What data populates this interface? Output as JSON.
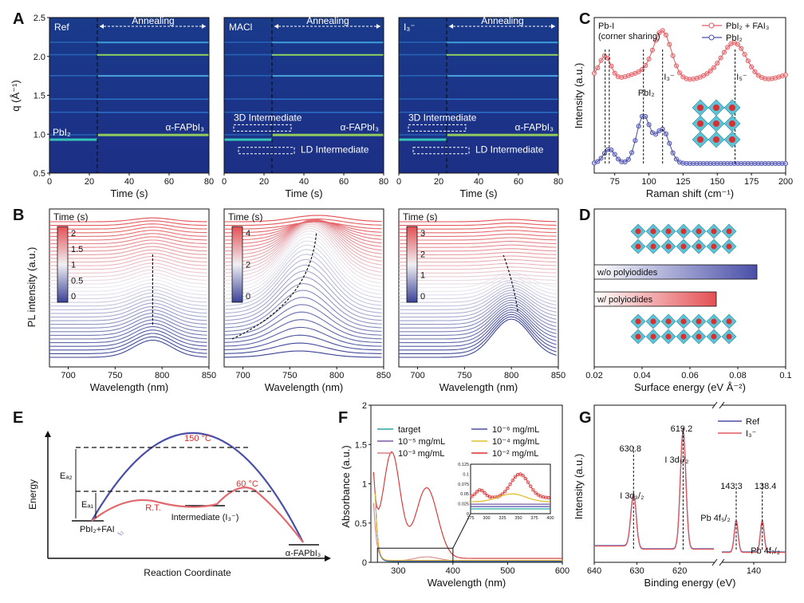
{
  "chart_data": [
    {
      "panel": "A",
      "type": "heatmap",
      "xlabel": "Time (s)",
      "ylabel": "q (Å⁻¹)",
      "xlim": [
        0,
        80
      ],
      "ylim": [
        0.5,
        2.5
      ],
      "xticks": [
        "0",
        "20",
        "40",
        "60",
        "80"
      ],
      "yticks": [
        "0.5",
        "1.0",
        "1.5",
        "2.0",
        "2.5"
      ],
      "annealing_start_s": 24,
      "annealing_label": "Annealing",
      "subplots": [
        {
          "title": "Ref",
          "labels": {
            "left_phase": "PbI₂",
            "right_phase": "α-FAPbI₃"
          }
        },
        {
          "title": "MACl",
          "labels": {
            "intermediate_3d": "3D Intermediate",
            "intermediate_ld": "LD Intermediate",
            "right_phase": "α-FAPbI₃"
          }
        },
        {
          "title": "I₃⁻",
          "labels": {
            "intermediate_3d": "3D Intermediate",
            "intermediate_ld": "LD Intermediate",
            "right_phase": "α-FAPbI₃"
          }
        }
      ]
    },
    {
      "panel": "B",
      "type": "line",
      "xlabel": "Wavelength (nm)",
      "ylabel": "PL intensity (a.u.)",
      "xlim": [
        680,
        850
      ],
      "xticks": [
        "700",
        "750",
        "800",
        "850"
      ],
      "colorbar_label": "Time (s)",
      "subplots": [
        {
          "colorbar_ticks": [
            "2",
            "1.5",
            "1",
            "0.5",
            "0"
          ],
          "peak_nm": 790
        },
        {
          "colorbar_ticks": [
            "4",
            "2",
            "0"
          ],
          "peak_nm": 780
        },
        {
          "colorbar_ticks": [
            "3",
            "2",
            "1",
            "0"
          ],
          "peak_nm": 800
        }
      ]
    },
    {
      "panel": "C",
      "type": "line",
      "xlabel": "Raman shift (cm⁻¹)",
      "ylabel": "Intensity (a.u.)",
      "xlim": [
        60,
        200
      ],
      "xticks": [
        "75",
        "100",
        "125",
        "150",
        "175",
        "200"
      ],
      "series": [
        {
          "name": "PbI₂ + FAI₃",
          "color": "#e05a60"
        },
        {
          "name": "PbI₂",
          "color": "#4a4fa8"
        }
      ],
      "annotations": [
        "Pb-I",
        "(corner sharing)",
        "I₃⁻",
        "I₅⁻",
        "PbI₂"
      ]
    },
    {
      "panel": "D",
      "type": "bar",
      "xlabel": "Surface energy (eV Å⁻²)",
      "xlim": [
        0.02,
        0.1
      ],
      "xticks": [
        "0.02",
        "0.04",
        "0.06",
        "0.08",
        "0.1"
      ],
      "categories": [
        "w/o polyiodides",
        "w/ polyiodides"
      ],
      "values": [
        0.088,
        0.071
      ]
    },
    {
      "panel": "E",
      "type": "diagram",
      "xlabel": "Reaction Coordinate",
      "ylabel": "Energy",
      "labels": {
        "start": "PbI₂+FAI",
        "end": "α-FAPbI₃",
        "intermediate": "Intermediate (I₃⁻)",
        "t_high": "150 °C",
        "t_low": "60 °C",
        "rt": "R.T.",
        "ea1": "Eₐ₁",
        "ea2": "Eₐ₂",
        "i2": "I₂"
      }
    },
    {
      "panel": "F",
      "type": "line",
      "xlabel": "Wavelength (nm)",
      "ylabel": "Absorbance (a.u.)",
      "xlim": [
        250,
        600
      ],
      "ylim": [
        0,
        2
      ],
      "xticks": [
        "300",
        "400",
        "500",
        "600"
      ],
      "yticks": [
        "0",
        "0.5",
        "1",
        "1.5",
        "2"
      ],
      "legend": [
        "target",
        "10⁻⁶ mg/mL",
        "10⁻⁵ mg/mL",
        "10⁻⁴ mg/mL",
        "10⁻³ mg/mL",
        "10⁻² mg/mL"
      ],
      "inset": {
        "xticks": [
          "275",
          "300",
          "325",
          "350",
          "375",
          "400"
        ],
        "yticks": [
          "0",
          "0.025",
          "0.05",
          "0.075",
          "0.1",
          "0.125"
        ]
      }
    },
    {
      "panel": "G",
      "type": "line",
      "xlabel": "Binding energy (eV)",
      "ylabel": "Intensity (a.u.)",
      "xticks": [
        "640",
        "630",
        "620",
        "140"
      ],
      "series": [
        {
          "name": "Ref",
          "color": "#4a4fa8"
        },
        {
          "name": "I₃⁻",
          "color": "#e05a60"
        }
      ],
      "peaks": [
        {
          "value": "630.8",
          "label": "I 3d₃/₂"
        },
        {
          "value": "619.2",
          "label": "I 3d₅/₂"
        },
        {
          "value": "143.3",
          "label": "Pb 4f₅/₂"
        },
        {
          "value": "138.4",
          "label": "Pb 4f₇/₂"
        }
      ]
    }
  ],
  "panel_letters": [
    "A",
    "B",
    "C",
    "D",
    "E",
    "F",
    "G"
  ]
}
